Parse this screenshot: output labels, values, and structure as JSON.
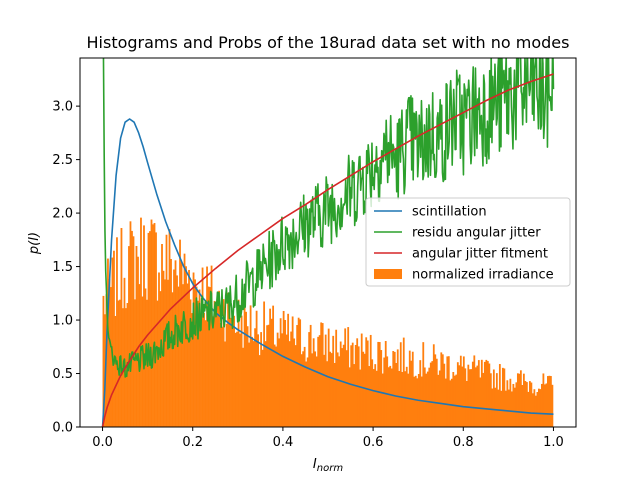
{
  "chart_data": {
    "type": "line",
    "title": "Histograms and Probs of the 18urad data set with no modes",
    "xlabel": "I_norm",
    "ylabel": "p(I)",
    "xlim": [
      -0.05,
      1.05
    ],
    "ylim": [
      0.0,
      3.45
    ],
    "x_ticks": [
      "0.0",
      "0.2",
      "0.4",
      "0.6",
      "0.8",
      "1.0"
    ],
    "y_ticks": [
      "0.0",
      "0.5",
      "1.0",
      "1.5",
      "2.0",
      "2.5",
      "3.0"
    ],
    "grid": false,
    "legend_position": "center-right",
    "histogram": {
      "name": "normalized irradiance",
      "color": "#ff7f0e",
      "bin_width": 0.00333,
      "envelope_x": [
        0.0,
        0.02,
        0.04,
        0.06,
        0.08,
        0.1,
        0.12,
        0.14,
        0.16,
        0.18,
        0.2,
        0.22,
        0.24,
        0.26,
        0.28,
        0.3,
        0.35,
        0.4,
        0.45,
        0.5,
        0.55,
        0.6,
        0.65,
        0.7,
        0.75,
        0.8,
        0.85,
        0.9,
        0.95,
        1.0
      ],
      "envelope_y": [
        1.15,
        1.3,
        1.45,
        1.55,
        1.6,
        1.62,
        1.6,
        1.55,
        1.5,
        1.45,
        1.38,
        1.3,
        1.22,
        1.15,
        1.08,
        1.0,
        0.93,
        0.87,
        0.82,
        0.78,
        0.73,
        0.7,
        0.67,
        0.63,
        0.6,
        0.55,
        0.5,
        0.45,
        0.41,
        0.38
      ]
    },
    "series": [
      {
        "name": "scintillation",
        "color": "#1f77b4",
        "x": [
          0.0,
          0.005,
          0.01,
          0.02,
          0.03,
          0.04,
          0.05,
          0.06,
          0.07,
          0.08,
          0.09,
          0.1,
          0.12,
          0.14,
          0.16,
          0.18,
          0.2,
          0.22,
          0.25,
          0.28,
          0.3,
          0.35,
          0.4,
          0.45,
          0.5,
          0.55,
          0.6,
          0.65,
          0.7,
          0.75,
          0.8,
          0.85,
          0.9,
          0.95,
          1.0
        ],
        "y": [
          0.0,
          0.35,
          0.9,
          1.75,
          2.35,
          2.7,
          2.85,
          2.88,
          2.85,
          2.75,
          2.62,
          2.47,
          2.18,
          1.92,
          1.7,
          1.5,
          1.34,
          1.22,
          1.07,
          0.97,
          0.91,
          0.78,
          0.66,
          0.56,
          0.47,
          0.4,
          0.34,
          0.29,
          0.25,
          0.22,
          0.19,
          0.17,
          0.15,
          0.13,
          0.12
        ]
      },
      {
        "name": "residu angular jitter",
        "color": "#2ca02c",
        "x": [
          0.002,
          0.004,
          0.006,
          0.01,
          0.015,
          0.02,
          0.03,
          0.05,
          0.07,
          0.1,
          0.12,
          0.15,
          0.18,
          0.2,
          0.22,
          0.25,
          0.28,
          0.3,
          0.33,
          0.35,
          0.38,
          0.4,
          0.43,
          0.45,
          0.48,
          0.5,
          0.53,
          0.55,
          0.58,
          0.6,
          0.63,
          0.65,
          0.68,
          0.7,
          0.73,
          0.75,
          0.78,
          0.8,
          0.83,
          0.85,
          0.88,
          0.9,
          0.93,
          0.95,
          0.98,
          1.0
        ],
        "y": [
          3.45,
          2.4,
          1.6,
          1.05,
          0.8,
          0.7,
          0.6,
          0.55,
          0.6,
          0.65,
          0.72,
          0.85,
          0.95,
          1.0,
          1.03,
          1.08,
          1.12,
          1.22,
          1.35,
          1.45,
          1.6,
          1.72,
          1.82,
          1.9,
          1.98,
          2.05,
          2.15,
          2.2,
          2.35,
          2.45,
          2.6,
          2.5,
          2.7,
          2.6,
          2.75,
          2.7,
          2.9,
          2.85,
          2.95,
          3.0,
          3.05,
          3.1,
          3.15,
          3.2,
          3.1,
          3.25
        ]
      },
      {
        "name": "angular jitter fitment",
        "color": "#d62728",
        "x": [
          0.0,
          0.005,
          0.01,
          0.02,
          0.04,
          0.06,
          0.08,
          0.1,
          0.15,
          0.2,
          0.25,
          0.3,
          0.35,
          0.4,
          0.45,
          0.5,
          0.55,
          0.6,
          0.65,
          0.7,
          0.75,
          0.8,
          0.85,
          0.9,
          0.95,
          1.0
        ],
        "y": [
          0.0,
          0.1,
          0.18,
          0.3,
          0.48,
          0.62,
          0.75,
          0.86,
          1.1,
          1.3,
          1.48,
          1.65,
          1.8,
          1.95,
          2.08,
          2.22,
          2.35,
          2.48,
          2.6,
          2.72,
          2.83,
          2.94,
          3.05,
          3.15,
          3.23,
          3.3
        ]
      }
    ]
  }
}
